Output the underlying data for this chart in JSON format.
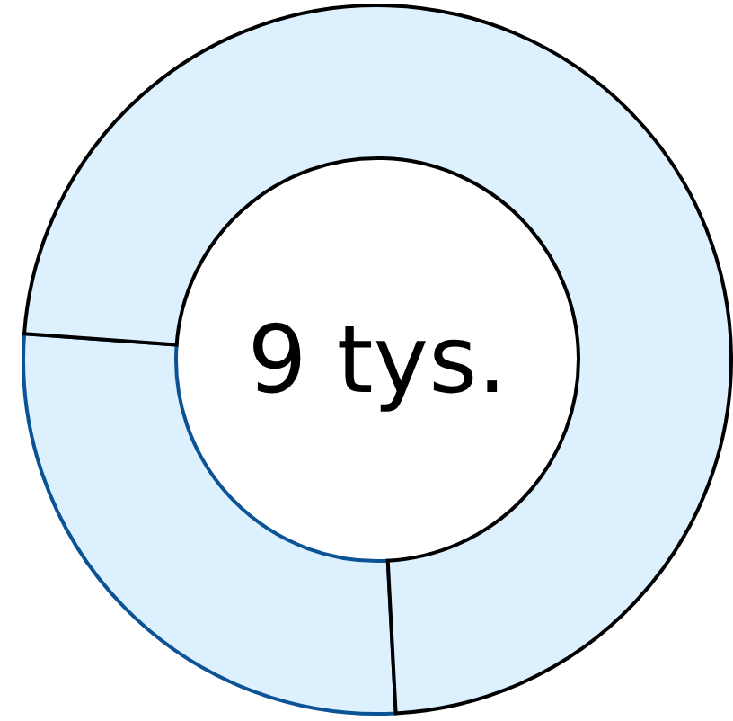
{
  "chart_data": {
    "type": "donut",
    "title": "9 tys.",
    "categories": [
      null,
      null
    ],
    "values": [
      27,
      73
    ],
    "colors": [
      "#ddf0fe",
      "#ddf0fe"
    ]
  }
}
